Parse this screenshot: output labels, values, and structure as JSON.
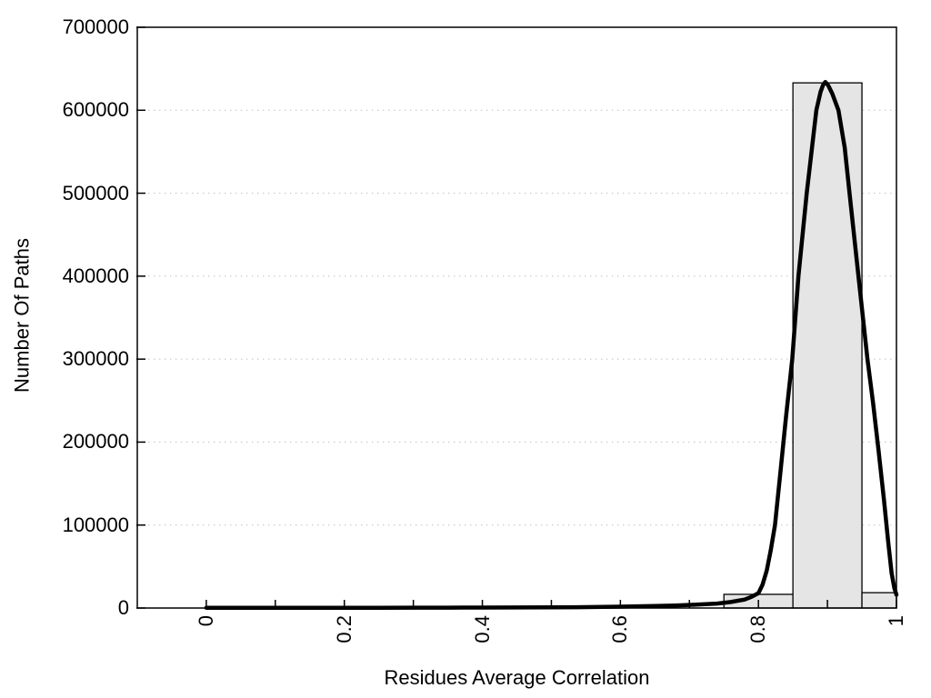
{
  "chart_data": {
    "type": "bar",
    "subtype": "histogram-with-fit-curve",
    "title": "",
    "xlabel": "Residues Average Correlation",
    "ylabel": "Number Of Paths",
    "xlim": [
      -0.1,
      1.0
    ],
    "ylim": [
      0,
      700000
    ],
    "grid": {
      "horizontal": true,
      "vertical": false,
      "style": "dotted",
      "values": [
        100000,
        200000,
        300000,
        400000,
        500000,
        600000
      ]
    },
    "x_minor_ticks": [
      0,
      0.1,
      0.2,
      0.3,
      0.4,
      0.5,
      0.6,
      0.7,
      0.8,
      0.9,
      1.0
    ],
    "x_major_ticks": [
      {
        "value": 0.0,
        "label": "0"
      },
      {
        "value": 0.2,
        "label": "0.2"
      },
      {
        "value": 0.4,
        "label": "0.4"
      },
      {
        "value": 0.6,
        "label": "0.6"
      },
      {
        "value": 0.8,
        "label": "0.8"
      },
      {
        "value": 1.0,
        "label": "1"
      }
    ],
    "y_ticks": [
      {
        "value": 0,
        "label": "0"
      },
      {
        "value": 100000,
        "label": "100000"
      },
      {
        "value": 200000,
        "label": "200000"
      },
      {
        "value": 300000,
        "label": "300000"
      },
      {
        "value": 400000,
        "label": "400000"
      },
      {
        "value": 500000,
        "label": "500000"
      },
      {
        "value": 600000,
        "label": "600000"
      },
      {
        "value": 700000,
        "label": "700000"
      }
    ],
    "bars": [
      {
        "x0": 0.75,
        "x1": 0.85,
        "value": 16500
      },
      {
        "x0": 0.85,
        "x1": 0.95,
        "value": 633000
      },
      {
        "x0": 0.95,
        "x1": 1.0,
        "value": 18500
      }
    ],
    "curve": {
      "name": "fit-curve",
      "points": [
        [
          0.0,
          300
        ],
        [
          0.05,
          300
        ],
        [
          0.1,
          300
        ],
        [
          0.15,
          320
        ],
        [
          0.2,
          350
        ],
        [
          0.25,
          380
        ],
        [
          0.3,
          420
        ],
        [
          0.35,
          470
        ],
        [
          0.4,
          550
        ],
        [
          0.45,
          650
        ],
        [
          0.5,
          800
        ],
        [
          0.55,
          1100
        ],
        [
          0.6,
          1600
        ],
        [
          0.65,
          2400
        ],
        [
          0.68,
          3100
        ],
        [
          0.71,
          4000
        ],
        [
          0.74,
          5400
        ],
        [
          0.76,
          7200
        ],
        [
          0.78,
          10200
        ],
        [
          0.79,
          13500
        ],
        [
          0.8,
          18000
        ],
        [
          0.806,
          28000
        ],
        [
          0.812,
          45000
        ],
        [
          0.818,
          70000
        ],
        [
          0.824,
          100000
        ],
        [
          0.832,
          165000
        ],
        [
          0.84,
          230000
        ],
        [
          0.849,
          300000
        ],
        [
          0.858,
          400000
        ],
        [
          0.87,
          500000
        ],
        [
          0.884,
          600000
        ],
        [
          0.89,
          622000
        ],
        [
          0.894,
          631000
        ],
        [
          0.897,
          634000
        ],
        [
          0.901,
          630000
        ],
        [
          0.907,
          620000
        ],
        [
          0.916,
          600000
        ],
        [
          0.925,
          555000
        ],
        [
          0.932,
          500000
        ],
        [
          0.945,
          400000
        ],
        [
          0.958,
          300000
        ],
        [
          0.966,
          248000
        ],
        [
          0.974,
          190000
        ],
        [
          0.982,
          130000
        ],
        [
          0.988,
          80000
        ],
        [
          0.993,
          42000
        ],
        [
          0.997,
          24000
        ],
        [
          1.0,
          16000
        ]
      ]
    },
    "colors": {
      "background": "#ffffff",
      "axis": "#000000",
      "text": "#000000",
      "grid": "#bdbdbd",
      "bar_fill": "#e5e5e5",
      "bar_border": "#000000",
      "curve": "#000000"
    }
  }
}
